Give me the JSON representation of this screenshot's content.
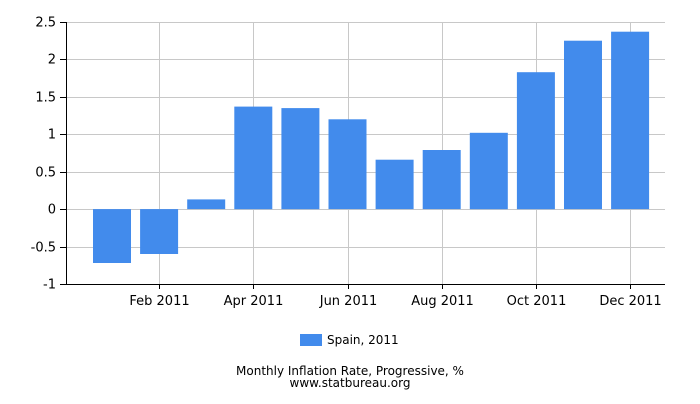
{
  "colors": {
    "bar": "#428bec",
    "grid": "#c8c8c8",
    "axis": "#000000",
    "background": "#ffffff"
  },
  "footer": {
    "title": "Monthly Inflation Rate, Progressive, %",
    "source": "www.statbureau.org"
  },
  "chart_data": {
    "type": "bar",
    "categories": [
      "Jan 2011",
      "Feb 2011",
      "Mar 2011",
      "Apr 2011",
      "May 2011",
      "Jun 2011",
      "Jul 2011",
      "Aug 2011",
      "Sep 2011",
      "Oct 2011",
      "Nov 2011",
      "Dec 2011"
    ],
    "x_tick_labels": [
      "Feb 2011",
      "Apr 2011",
      "Jun 2011",
      "Aug 2011",
      "Oct 2011",
      "Dec 2011"
    ],
    "series": [
      {
        "name": "Spain, 2011",
        "values": [
          -0.72,
          -0.6,
          0.13,
          1.37,
          1.35,
          1.2,
          0.66,
          0.79,
          1.02,
          1.83,
          2.25,
          2.37
        ]
      }
    ],
    "ylim": [
      -1,
      2.5
    ],
    "y_ticks": [
      -1,
      -0.5,
      0,
      0.5,
      1,
      1.5,
      2,
      2.5
    ],
    "y_tick_labels": [
      "-1",
      "-0.5",
      "0",
      "0.5",
      "1",
      "1.5",
      "2",
      "2.5"
    ],
    "grid": true,
    "legend_position": "bottom-center"
  }
}
